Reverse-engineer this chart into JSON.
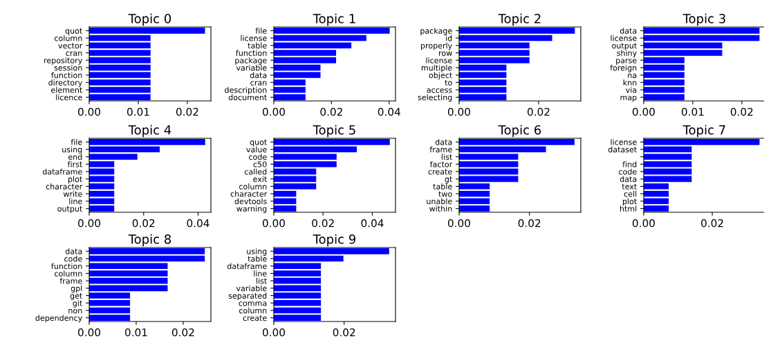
{
  "chart_data": [
    {
      "type": "bar",
      "orientation": "horizontal",
      "title": "Topic 0",
      "categories": [
        "quot",
        "column",
        "vector",
        "cran",
        "repository",
        "session",
        "function",
        "directory",
        "element",
        "licence"
      ],
      "values": [
        0.0236,
        0.0125,
        0.0125,
        0.0125,
        0.0125,
        0.0125,
        0.0125,
        0.0125,
        0.0125,
        0.0125
      ],
      "color": "#0000ff",
      "xlim": [
        0,
        0.0248
      ],
      "xticks": [
        {
          "value": 0,
          "label": "0.00"
        },
        {
          "value": 0.01,
          "label": "0.01"
        },
        {
          "value": 0.02,
          "label": "0.02"
        }
      ]
    },
    {
      "type": "bar",
      "orientation": "horizontal",
      "title": "Topic 1",
      "categories": [
        "file",
        "license",
        "table",
        "function",
        "package",
        "variable",
        "data",
        "cran",
        "description",
        "document"
      ],
      "values": [
        0.0402,
        0.0321,
        0.0269,
        0.0216,
        0.0216,
        0.0162,
        0.0162,
        0.011,
        0.011,
        0.011
      ],
      "color": "#0000ff",
      "xlim": [
        0,
        0.0422
      ],
      "xticks": [
        {
          "value": 0,
          "label": "0.00"
        },
        {
          "value": 0.02,
          "label": "0.02"
        },
        {
          "value": 0.04,
          "label": "0.04"
        }
      ]
    },
    {
      "type": "bar",
      "orientation": "horizontal",
      "title": "Topic 2",
      "categories": [
        "package",
        "id",
        "properly",
        "row",
        "license",
        "multiple",
        "object",
        "to",
        "access",
        "selecting"
      ],
      "values": [
        0.0291,
        0.0234,
        0.0177,
        0.0177,
        0.0177,
        0.0119,
        0.0119,
        0.0119,
        0.0119,
        0.0119
      ],
      "color": "#0000ff",
      "xlim": [
        0,
        0.0306
      ],
      "xticks": [
        {
          "value": 0,
          "label": "0.00"
        },
        {
          "value": 0.02,
          "label": "0.02"
        }
      ]
    },
    {
      "type": "bar",
      "orientation": "horizontal",
      "title": "Topic 3",
      "categories": [
        "data",
        "license",
        "output",
        "shiny",
        "parse",
        "foreign",
        "na",
        "knn",
        "via",
        "map"
      ],
      "values": [
        0.0236,
        0.0236,
        0.016,
        0.016,
        0.0083,
        0.0083,
        0.0083,
        0.0083,
        0.0083,
        0.0083
      ],
      "color": "#0000ff",
      "xlim": [
        0,
        0.0248
      ],
      "xticks": [
        {
          "value": 0,
          "label": "0.00"
        },
        {
          "value": 0.01,
          "label": "0.01"
        },
        {
          "value": 0.02,
          "label": "0.02"
        }
      ]
    },
    {
      "type": "bar",
      "orientation": "horizontal",
      "title": "Topic 4",
      "categories": [
        "file",
        "using",
        "end",
        "first",
        "dataframe",
        "plot",
        "character",
        "write",
        "line",
        "output"
      ],
      "values": [
        0.0426,
        0.0259,
        0.0177,
        0.0092,
        0.0092,
        0.0092,
        0.0092,
        0.0092,
        0.0092,
        0.0092
      ],
      "color": "#0000ff",
      "xlim": [
        0,
        0.0447
      ],
      "xticks": [
        {
          "value": 0,
          "label": "0.00"
        },
        {
          "value": 0.02,
          "label": "0.02"
        },
        {
          "value": 0.04,
          "label": "0.04"
        }
      ]
    },
    {
      "type": "bar",
      "orientation": "horizontal",
      "title": "Topic 5",
      "categories": [
        "quot",
        "value",
        "code",
        "c50",
        "called",
        "exit",
        "column",
        "character",
        "devtools",
        "warning"
      ],
      "values": [
        0.0471,
        0.0337,
        0.0255,
        0.0255,
        0.0172,
        0.0172,
        0.0172,
        0.0091,
        0.0091,
        0.0091
      ],
      "color": "#0000ff",
      "xlim": [
        0,
        0.0494
      ],
      "xticks": [
        {
          "value": 0,
          "label": "0.00"
        },
        {
          "value": 0.02,
          "label": "0.02"
        },
        {
          "value": 0.04,
          "label": "0.04"
        }
      ]
    },
    {
      "type": "bar",
      "orientation": "horizontal",
      "title": "Topic 6",
      "categories": [
        "data",
        "frame",
        "list",
        "factor",
        "create",
        "gt",
        "table",
        "two",
        "unable",
        "within"
      ],
      "values": [
        0.0328,
        0.0247,
        0.0168,
        0.0168,
        0.0168,
        0.0168,
        0.0087,
        0.0087,
        0.0087,
        0.0087
      ],
      "color": "#0000ff",
      "xlim": [
        0,
        0.0346
      ],
      "xticks": [
        {
          "value": 0,
          "label": "0.00"
        },
        {
          "value": 0.02,
          "label": "0.02"
        }
      ]
    },
    {
      "type": "bar",
      "orientation": "horizontal",
      "title": "Topic 7",
      "categories": [
        "license",
        "dataset",
        null,
        "find",
        "code",
        "data",
        "text",
        "cell",
        "plot",
        "html"
      ],
      "values": [
        0.0338,
        0.014,
        0.014,
        0.014,
        0.014,
        0.014,
        0.0073,
        0.0073,
        0.0073,
        0.0073
      ],
      "color": "#0000ff",
      "xlim": [
        0,
        0.0355
      ],
      "xticks": [
        {
          "value": 0,
          "label": "0.00"
        },
        {
          "value": 0.02,
          "label": "0.02"
        }
      ]
    },
    {
      "type": "bar",
      "orientation": "horizontal",
      "title": "Topic 8",
      "categories": [
        "data",
        "code",
        "function",
        "column",
        "frame",
        "gpl",
        "get",
        "git",
        "non",
        "dependency"
      ],
      "values": [
        0.0246,
        0.0246,
        0.0167,
        0.0167,
        0.0167,
        0.0167,
        0.0087,
        0.0087,
        0.0087,
        0.0087
      ],
      "color": "#0000ff",
      "xlim": [
        0,
        0.0259
      ],
      "xticks": [
        {
          "value": 0,
          "label": "0.00"
        },
        {
          "value": 0.01,
          "label": "0.01"
        },
        {
          "value": 0.02,
          "label": "0.02"
        }
      ]
    },
    {
      "type": "bar",
      "orientation": "horizontal",
      "title": "Topic 9",
      "categories": [
        "using",
        "table",
        "dataframe",
        "line",
        "list",
        "variable",
        "separated",
        "comma",
        "column",
        "create"
      ],
      "values": [
        0.0328,
        0.0198,
        0.0134,
        0.0134,
        0.0134,
        0.0134,
        0.0134,
        0.0134,
        0.0134,
        0.0134
      ],
      "color": "#0000ff",
      "xlim": [
        0,
        0.0346
      ],
      "xticks": [
        {
          "value": 0,
          "label": "0.00"
        },
        {
          "value": 0.02,
          "label": "0.02"
        }
      ]
    }
  ]
}
